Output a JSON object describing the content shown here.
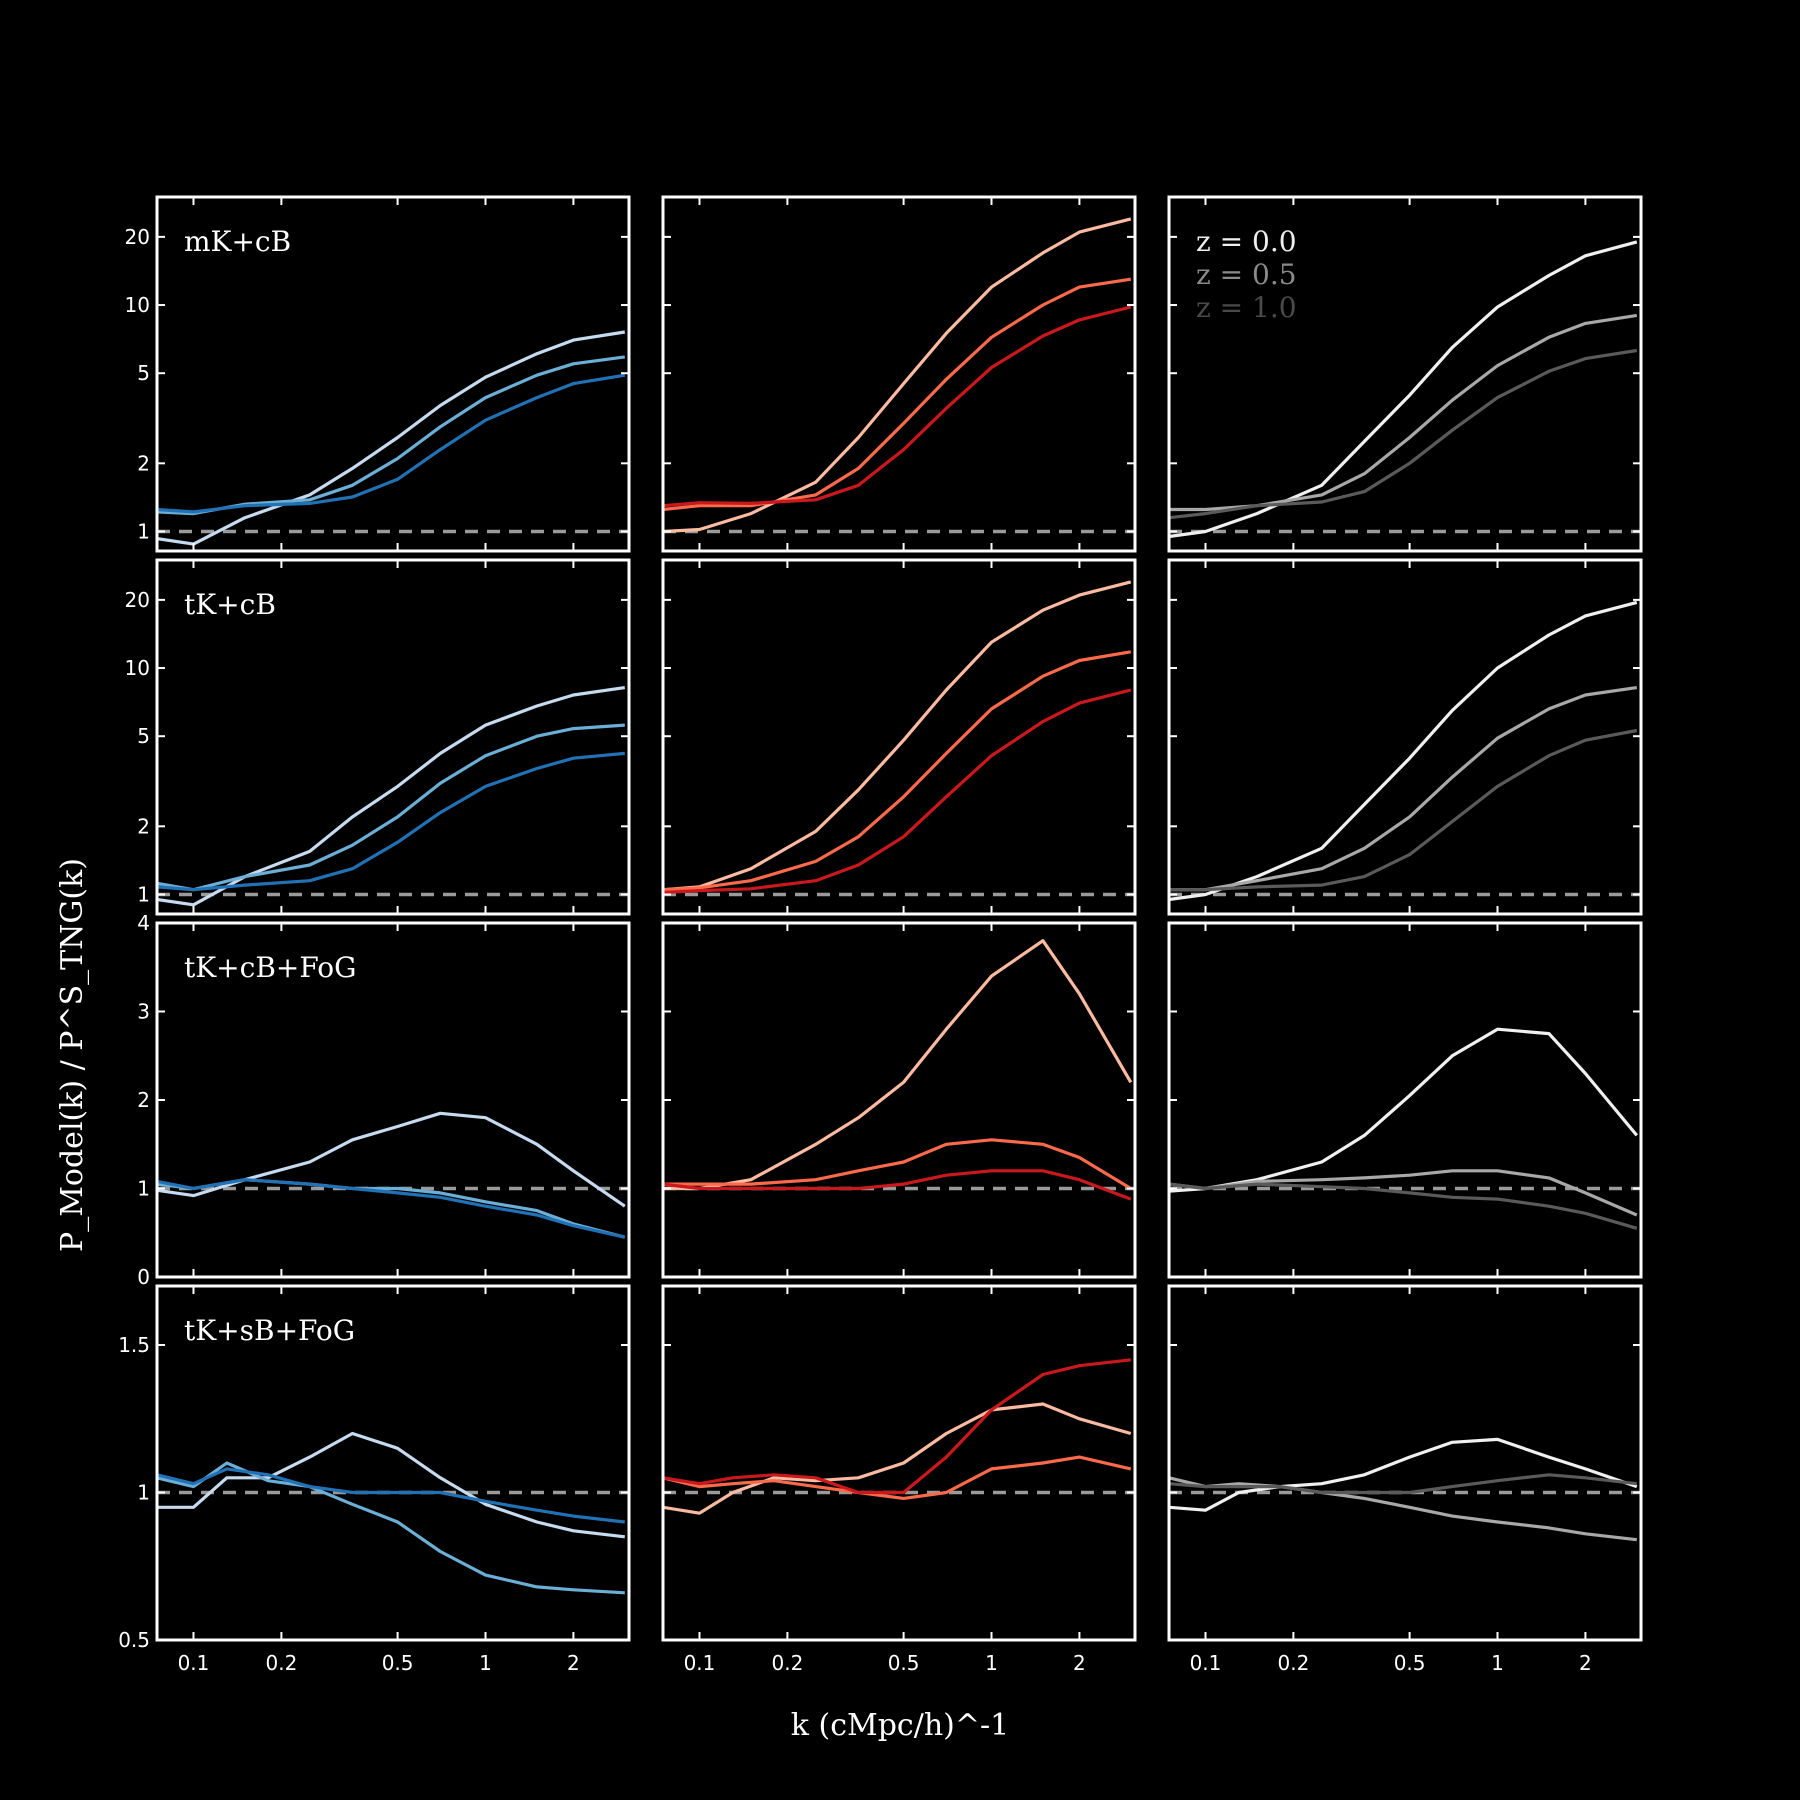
{
  "chart_data": {
    "type": "line",
    "grid": false,
    "legend_placement": "top-left of top-right panel",
    "xlabel": "k (cMpc/h)^-1",
    "ylabel": "P_Model(k) / P^S_TNG(k)",
    "x_scale": "log",
    "y_scale_rows_1_2": "log",
    "y_scale_rows_3_4": "linear",
    "xlim": [
      0.075,
      3.1
    ],
    "x_ticks": [
      0.1,
      0.2,
      0.5,
      1,
      2
    ],
    "x_tick_labels": [
      "0.1",
      "0.2",
      "0.5",
      "1",
      "2"
    ],
    "legend": [
      {
        "label": "z = 0.0",
        "color": "#eeeeee"
      },
      {
        "label": "z = 0.5",
        "color": "#8a8a8a"
      },
      {
        "label": "z = 1.0",
        "color": "#4a4a4a"
      }
    ],
    "reference_line": {
      "y": 1,
      "style": "dashed",
      "color": "#9a9a9a"
    },
    "columns": [
      {
        "colors": [
          "#c6dbef",
          "#6baed6",
          "#2171b5"
        ]
      },
      {
        "colors": [
          "#fcbba1",
          "#fb6a4a",
          "#cb181d"
        ]
      },
      {
        "colors": [
          "#f0f0f0",
          "#a8a8a8",
          "#5a5a5a"
        ]
      }
    ],
    "rows": [
      {
        "label": "mK+cB",
        "scale": "log",
        "ylim": [
          0.82,
          30
        ],
        "y_ticks": [
          1,
          2,
          5,
          10,
          20
        ],
        "y_tick_labels": [
          "1",
          "2",
          "5",
          "10",
          "20"
        ],
        "panels": [
          {
            "x": [
              0.075,
              0.1,
              0.15,
              0.25,
              0.35,
              0.5,
              0.7,
              1,
              1.5,
              2,
              3
            ],
            "series": [
              {
                "name": "z = 0.0",
                "y": [
                  0.93,
                  0.88,
                  1.15,
                  1.45,
                  1.9,
                  2.6,
                  3.6,
                  4.8,
                  6.1,
                  7.0,
                  7.6
                ]
              },
              {
                "name": "z = 0.5",
                "y": [
                  1.22,
                  1.2,
                  1.32,
                  1.38,
                  1.6,
                  2.1,
                  2.9,
                  3.9,
                  4.9,
                  5.5,
                  5.9
                ]
              },
              {
                "name": "z = 1.0",
                "y": [
                  1.25,
                  1.22,
                  1.3,
                  1.33,
                  1.42,
                  1.7,
                  2.3,
                  3.1,
                  3.9,
                  4.5,
                  4.9
                ]
              }
            ]
          },
          {
            "x": [
              0.075,
              0.1,
              0.15,
              0.25,
              0.35,
              0.5,
              0.7,
              1,
              1.5,
              2,
              3
            ],
            "series": [
              {
                "name": "z = 0.0",
                "y": [
                  1.0,
                  1.02,
                  1.2,
                  1.65,
                  2.6,
                  4.5,
                  7.5,
                  12,
                  17,
                  21,
                  24
                ]
              },
              {
                "name": "z = 0.5",
                "y": [
                  1.25,
                  1.3,
                  1.3,
                  1.45,
                  1.9,
                  3.0,
                  4.7,
                  7.2,
                  10,
                  12,
                  13
                ]
              },
              {
                "name": "z = 1.0",
                "y": [
                  1.3,
                  1.34,
                  1.33,
                  1.38,
                  1.6,
                  2.3,
                  3.5,
                  5.3,
                  7.3,
                  8.6,
                  9.8
                ]
              }
            ]
          },
          {
            "x": [
              0.075,
              0.1,
              0.15,
              0.25,
              0.35,
              0.5,
              0.7,
              1,
              1.5,
              2,
              3
            ],
            "series": [
              {
                "name": "z = 0.0",
                "y": [
                  0.95,
                  1.0,
                  1.2,
                  1.6,
                  2.5,
                  4.0,
                  6.5,
                  9.8,
                  13.5,
                  16.5,
                  19
                ]
              },
              {
                "name": "z = 0.5",
                "y": [
                  1.25,
                  1.25,
                  1.3,
                  1.45,
                  1.8,
                  2.6,
                  3.8,
                  5.4,
                  7.2,
                  8.3,
                  9.0
                ]
              },
              {
                "name": "z = 1.0",
                "y": [
                  1.15,
                  1.2,
                  1.3,
                  1.35,
                  1.5,
                  2.0,
                  2.8,
                  3.9,
                  5.1,
                  5.8,
                  6.3
                ]
              }
            ]
          }
        ]
      },
      {
        "label": "tK+cB",
        "scale": "log",
        "ylim": [
          0.82,
          30
        ],
        "y_ticks": [
          1,
          2,
          5,
          10,
          20
        ],
        "y_tick_labels": [
          "1",
          "2",
          "5",
          "10",
          "20"
        ],
        "panels": [
          {
            "x": [
              0.075,
              0.1,
              0.15,
              0.25,
              0.35,
              0.5,
              0.7,
              1,
              1.5,
              2,
              3
            ],
            "series": [
              {
                "name": "z = 0.0",
                "y": [
                  0.95,
                  0.9,
                  1.2,
                  1.55,
                  2.2,
                  3.0,
                  4.2,
                  5.6,
                  6.8,
                  7.6,
                  8.2
                ]
              },
              {
                "name": "z = 0.5",
                "y": [
                  1.12,
                  1.05,
                  1.2,
                  1.35,
                  1.65,
                  2.2,
                  3.1,
                  4.1,
                  5.0,
                  5.4,
                  5.6
                ]
              },
              {
                "name": "z = 1.0",
                "y": [
                  1.08,
                  1.05,
                  1.1,
                  1.15,
                  1.3,
                  1.7,
                  2.3,
                  3.0,
                  3.6,
                  4.0,
                  4.2
                ]
              }
            ]
          },
          {
            "x": [
              0.075,
              0.1,
              0.15,
              0.25,
              0.35,
              0.5,
              0.7,
              1,
              1.5,
              2,
              3
            ],
            "series": [
              {
                "name": "z = 0.0",
                "y": [
                  1.05,
                  1.08,
                  1.3,
                  1.9,
                  2.9,
                  4.8,
                  8.0,
                  13,
                  18,
                  21,
                  24
                ]
              },
              {
                "name": "z = 0.5",
                "y": [
                  1.05,
                  1.07,
                  1.15,
                  1.4,
                  1.8,
                  2.7,
                  4.2,
                  6.6,
                  9.2,
                  10.8,
                  11.8
                ]
              },
              {
                "name": "z = 1.0",
                "y": [
                  1.02,
                  1.04,
                  1.06,
                  1.15,
                  1.35,
                  1.8,
                  2.7,
                  4.1,
                  5.8,
                  7.0,
                  8.0
                ]
              }
            ]
          },
          {
            "x": [
              0.075,
              0.1,
              0.15,
              0.25,
              0.35,
              0.5,
              0.7,
              1,
              1.5,
              2,
              3
            ],
            "series": [
              {
                "name": "z = 0.0",
                "y": [
                  0.95,
                  1.0,
                  1.2,
                  1.6,
                  2.5,
                  4.0,
                  6.5,
                  10,
                  14,
                  17,
                  19.5
                ]
              },
              {
                "name": "z = 0.5",
                "y": [
                  1.05,
                  1.05,
                  1.15,
                  1.3,
                  1.6,
                  2.2,
                  3.3,
                  4.9,
                  6.6,
                  7.6,
                  8.2
                ]
              },
              {
                "name": "z = 1.0",
                "y": [
                  1.05,
                  1.05,
                  1.08,
                  1.1,
                  1.2,
                  1.5,
                  2.1,
                  3.0,
                  4.1,
                  4.8,
                  5.3
                ]
              }
            ]
          }
        ]
      },
      {
        "label": "tK+cB+FoG",
        "scale": "linear",
        "ylim": [
          0,
          4
        ],
        "y_ticks": [
          0,
          1,
          2,
          3,
          4
        ],
        "y_tick_labels": [
          "0",
          "1",
          "2",
          "3",
          "4"
        ],
        "panels": [
          {
            "x": [
              0.075,
              0.1,
              0.15,
              0.25,
              0.35,
              0.5,
              0.7,
              1,
              1.5,
              2,
              3
            ],
            "series": [
              {
                "name": "z = 0.0",
                "y": [
                  0.98,
                  0.92,
                  1.1,
                  1.3,
                  1.55,
                  1.7,
                  1.85,
                  1.8,
                  1.5,
                  1.2,
                  0.8
                ]
              },
              {
                "name": "z = 0.5",
                "y": [
                  1.05,
                  1.0,
                  1.1,
                  1.05,
                  1.0,
                  1.0,
                  0.95,
                  0.85,
                  0.75,
                  0.6,
                  0.45
                ]
              },
              {
                "name": "z = 1.0",
                "y": [
                  1.08,
                  1.0,
                  1.1,
                  1.05,
                  1.0,
                  0.95,
                  0.9,
                  0.8,
                  0.7,
                  0.58,
                  0.45
                ]
              }
            ]
          },
          {
            "x": [
              0.075,
              0.1,
              0.15,
              0.25,
              0.35,
              0.5,
              0.7,
              1,
              1.5,
              2,
              3
            ],
            "series": [
              {
                "name": "z = 0.0",
                "y": [
                  1.0,
                  1.0,
                  1.1,
                  1.5,
                  1.8,
                  2.2,
                  2.8,
                  3.4,
                  3.8,
                  3.2,
                  2.2
                ]
              },
              {
                "name": "z = 0.5",
                "y": [
                  1.05,
                  1.05,
                  1.05,
                  1.1,
                  1.2,
                  1.3,
                  1.5,
                  1.55,
                  1.5,
                  1.35,
                  1.0
                ]
              },
              {
                "name": "z = 1.0",
                "y": [
                  1.05,
                  1.0,
                  1.0,
                  1.0,
                  1.0,
                  1.05,
                  1.15,
                  1.2,
                  1.2,
                  1.1,
                  0.88
                ]
              }
            ]
          },
          {
            "x": [
              0.075,
              0.1,
              0.15,
              0.25,
              0.35,
              0.5,
              0.7,
              1,
              1.5,
              2,
              3
            ],
            "series": [
              {
                "name": "z = 0.0",
                "y": [
                  0.97,
                  1.0,
                  1.1,
                  1.3,
                  1.6,
                  2.05,
                  2.5,
                  2.8,
                  2.75,
                  2.3,
                  1.6
                ]
              },
              {
                "name": "z = 0.5",
                "y": [
                  1.05,
                  1.0,
                  1.08,
                  1.1,
                  1.12,
                  1.15,
                  1.2,
                  1.2,
                  1.12,
                  0.95,
                  0.7
                ]
              },
              {
                "name": "z = 1.0",
                "y": [
                  1.05,
                  1.0,
                  1.05,
                  1.02,
                  1.0,
                  0.95,
                  0.9,
                  0.88,
                  0.8,
                  0.72,
                  0.55
                ]
              }
            ]
          }
        ]
      },
      {
        "label": "tK+sB+FoG",
        "scale": "linear",
        "ylim": [
          0.5,
          1.7
        ],
        "y_ticks": [
          0.5,
          1,
          1.5
        ],
        "y_tick_labels": [
          "0.5",
          "1",
          "1.5"
        ],
        "panels": [
          {
            "x": [
              0.075,
              0.1,
              0.13,
              0.18,
              0.25,
              0.35,
              0.5,
              0.7,
              1,
              1.5,
              2,
              3
            ],
            "series": [
              {
                "name": "z = 0.0",
                "y": [
                  0.95,
                  0.95,
                  1.05,
                  1.05,
                  1.12,
                  1.2,
                  1.15,
                  1.05,
                  0.96,
                  0.9,
                  0.87,
                  0.85
                ]
              },
              {
                "name": "z = 0.5",
                "y": [
                  1.05,
                  1.02,
                  1.1,
                  1.04,
                  1.02,
                  0.96,
                  0.9,
                  0.8,
                  0.72,
                  0.68,
                  0.67,
                  0.66
                ]
              },
              {
                "name": "z = 1.0",
                "y": [
                  1.06,
                  1.03,
                  1.08,
                  1.06,
                  1.02,
                  1.0,
                  1.0,
                  1.0,
                  0.97,
                  0.94,
                  0.92,
                  0.9
                ]
              }
            ]
          },
          {
            "x": [
              0.075,
              0.1,
              0.13,
              0.18,
              0.25,
              0.35,
              0.5,
              0.7,
              1,
              1.5,
              2,
              3
            ],
            "series": [
              {
                "name": "z = 0.0",
                "y": [
                  0.95,
                  0.93,
                  1.0,
                  1.05,
                  1.04,
                  1.05,
                  1.1,
                  1.2,
                  1.28,
                  1.3,
                  1.25,
                  1.2
                ]
              },
              {
                "name": "z = 0.5",
                "y": [
                  1.05,
                  1.02,
                  1.03,
                  1.04,
                  1.02,
                  1.0,
                  0.98,
                  1.0,
                  1.08,
                  1.1,
                  1.12,
                  1.08
                ]
              },
              {
                "name": "z = 1.0",
                "y": [
                  1.05,
                  1.03,
                  1.05,
                  1.06,
                  1.05,
                  1.0,
                  1.0,
                  1.12,
                  1.28,
                  1.4,
                  1.43,
                  1.45
                ]
              }
            ]
          },
          {
            "x": [
              0.075,
              0.1,
              0.13,
              0.18,
              0.25,
              0.35,
              0.5,
              0.7,
              1,
              1.5,
              2,
              3
            ],
            "series": [
              {
                "name": "z = 0.0",
                "y": [
                  0.95,
                  0.94,
                  1.0,
                  1.02,
                  1.03,
                  1.06,
                  1.12,
                  1.17,
                  1.18,
                  1.12,
                  1.08,
                  1.02
                ]
              },
              {
                "name": "z = 0.5",
                "y": [
                  1.05,
                  1.02,
                  1.03,
                  1.02,
                  1.0,
                  0.98,
                  0.95,
                  0.92,
                  0.9,
                  0.88,
                  0.86,
                  0.84
                ]
              },
              {
                "name": "z = 1.0",
                "y": [
                  1.03,
                  1.02,
                  1.02,
                  1.02,
                  1.0,
                  1.0,
                  1.0,
                  1.02,
                  1.04,
                  1.06,
                  1.05,
                  1.03
                ]
              }
            ]
          }
        ]
      }
    ]
  }
}
